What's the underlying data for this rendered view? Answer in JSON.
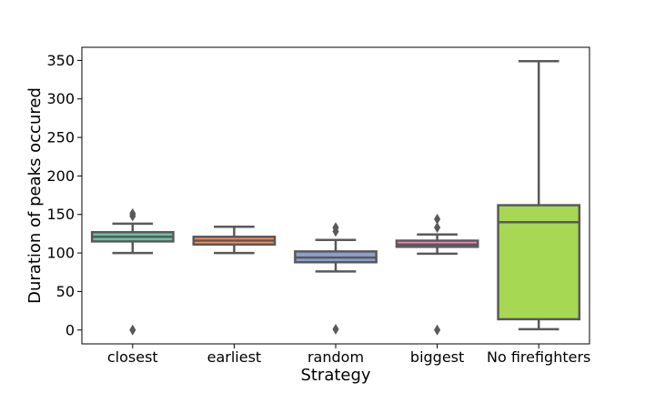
{
  "chart_data": {
    "type": "box",
    "xlabel": "Strategy",
    "ylabel": "Duration of peaks occured",
    "ylim": [
      -18,
      367
    ],
    "yticks": [
      0,
      50,
      100,
      150,
      200,
      250,
      300,
      350
    ],
    "grid": false,
    "categories": [
      "closest",
      "earliest",
      "random",
      "biggest",
      "No firefighters"
    ],
    "series": [
      {
        "category": "closest",
        "color": "#66c2a5",
        "whisker_low": 100,
        "q1": 115,
        "median": 121,
        "q3": 127,
        "whisker_high": 138,
        "outliers": [
          0,
          148,
          151
        ]
      },
      {
        "category": "earliest",
        "color": "#fc8d62",
        "whisker_low": 100,
        "q1": 111,
        "median": 116,
        "q3": 121,
        "whisker_high": 134,
        "outliers": []
      },
      {
        "category": "random",
        "color": "#8da0cb",
        "whisker_low": 76,
        "q1": 88,
        "median": 94,
        "q3": 102,
        "whisker_high": 117,
        "outliers": [
          1,
          128,
          133
        ]
      },
      {
        "category": "biggest",
        "color": "#e78ac3",
        "whisker_low": 99,
        "q1": 108,
        "median": 111,
        "q3": 116,
        "whisker_high": 124,
        "outliers": [
          0,
          133,
          144
        ]
      },
      {
        "category": "No firefighters",
        "color": "#a6d854",
        "whisker_low": 1,
        "q1": 14,
        "median": 140,
        "q3": 162,
        "whisker_high": 349,
        "outliers": []
      }
    ]
  }
}
